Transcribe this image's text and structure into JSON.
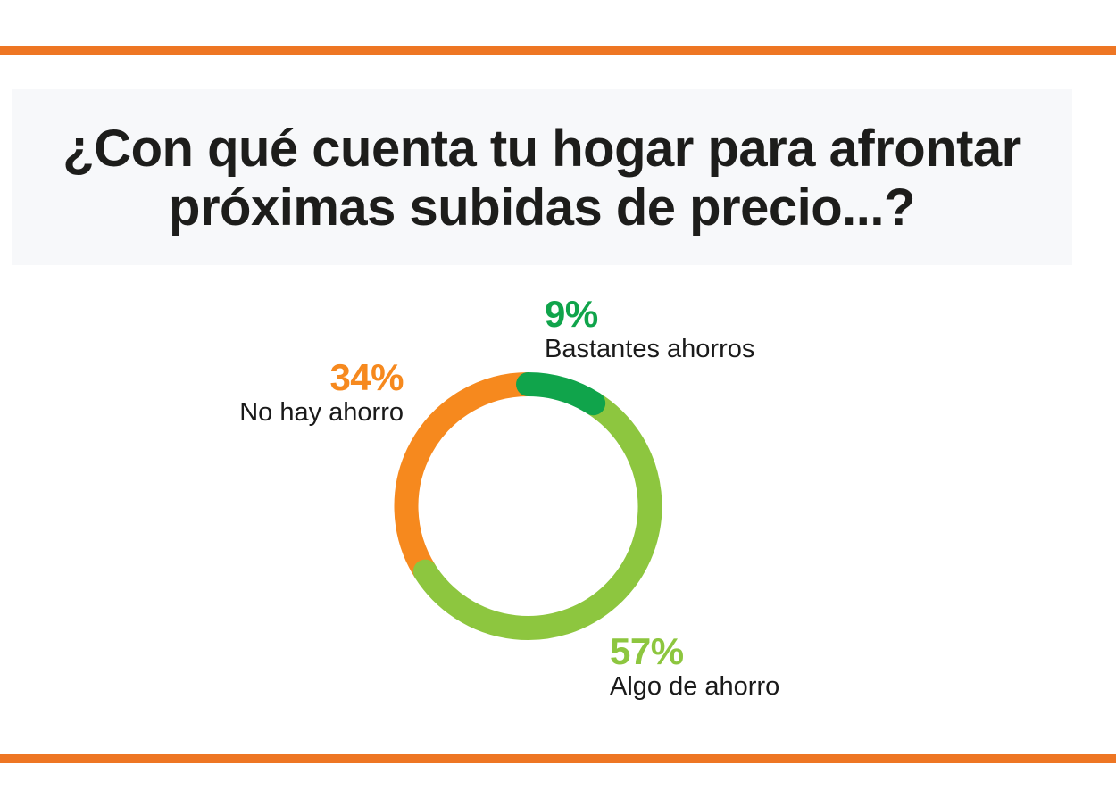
{
  "page": {
    "background": "#FFFFFF",
    "accent_bar_color": "#EE7623",
    "title_box_color": "#F7F8FA"
  },
  "title": {
    "full_text": "¿Con qué cuenta tu hogar para afrontar próximas subidas de precio...?",
    "line1": "¿Con qué cuenta tu hogar para afrontar",
    "line2": "próximas subidas de precio...?",
    "color": "#1D1D1B"
  },
  "chart_data": {
    "type": "pie",
    "subtype": "donut",
    "unit": "%",
    "start_angle_deg": 0,
    "direction": "clockwise",
    "legend_position": "around-chart",
    "grid": false,
    "segments": [
      {
        "label": "Bastantes ahorros",
        "value": 9,
        "percent_label": "9%",
        "color": "#10A44B",
        "cap": "round",
        "z": 3
      },
      {
        "label": "Algo de ahorro",
        "value": 57,
        "percent_label": "57%",
        "color": "#8DC63F",
        "cap": "round",
        "z": 2
      },
      {
        "label": "No hay ahorro",
        "value": 34,
        "percent_label": "34%",
        "color": "#F6891E",
        "cap": "butt",
        "z": 1
      }
    ]
  }
}
